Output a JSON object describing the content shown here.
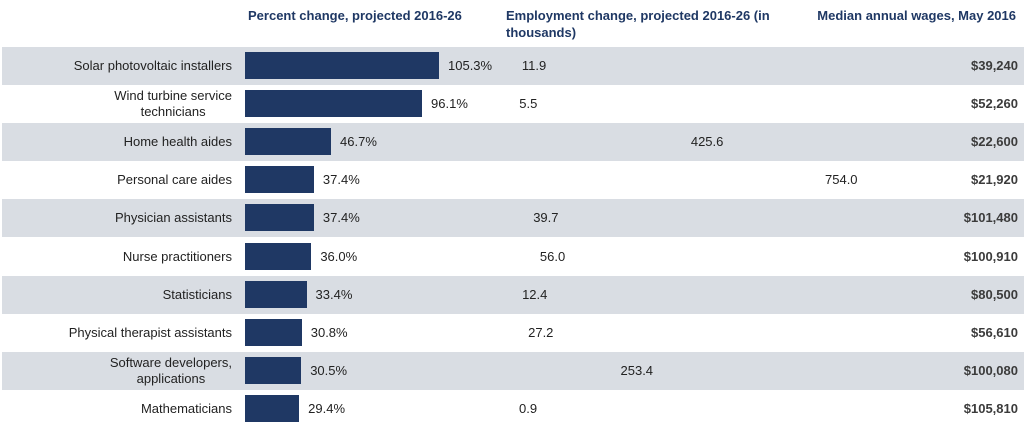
{
  "chart_data": {
    "type": "bar",
    "orientation": "horizontal",
    "headers": {
      "percent": "Percent change, projected 2016-26",
      "employment": "Employment change, projected 2016-26 (in thousands)",
      "wages": "Median annual wages, May 2016"
    },
    "categories": [
      "Solar photovoltaic installers",
      "Wind turbine service technicians",
      "Home health aides",
      "Personal care aides",
      "Physician assistants",
      "Nurse practitioners",
      "Statisticians",
      "Physical therapist assistants",
      "Software developers, applications",
      "Mathematicians"
    ],
    "series": [
      {
        "name": "Percent change, projected 2016-26",
        "values": [
          105.3,
          96.1,
          46.7,
          37.4,
          37.4,
          36.0,
          33.4,
          30.8,
          30.5,
          29.4
        ],
        "labels": [
          "105.3%",
          "96.1%",
          "46.7%",
          "37.4%",
          "37.4%",
          "36.0%",
          "33.4%",
          "30.8%",
          "30.5%",
          "29.4%"
        ],
        "color": "#1f3864"
      },
      {
        "name": "Employment change, projected 2016-26 (in thousands)",
        "values": [
          11.9,
          5.5,
          425.6,
          754.0,
          39.7,
          56.0,
          12.4,
          27.2,
          253.4,
          0.9
        ],
        "labels": [
          "11.9",
          "5.5",
          "425.6",
          "754.0",
          "39.7",
          "56.0",
          "12.4",
          "27.2",
          "253.4",
          "0.9"
        ],
        "color": "#99cc00"
      }
    ],
    "wages": [
      "$39,240",
      "$52,260",
      "$22,600",
      "$21,920",
      "$101,480",
      "$100,910",
      "$80,500",
      "$56,610",
      "$100,080",
      "$105,810"
    ],
    "row_shading": "#d9dde3",
    "grid": false,
    "legend": "none"
  }
}
